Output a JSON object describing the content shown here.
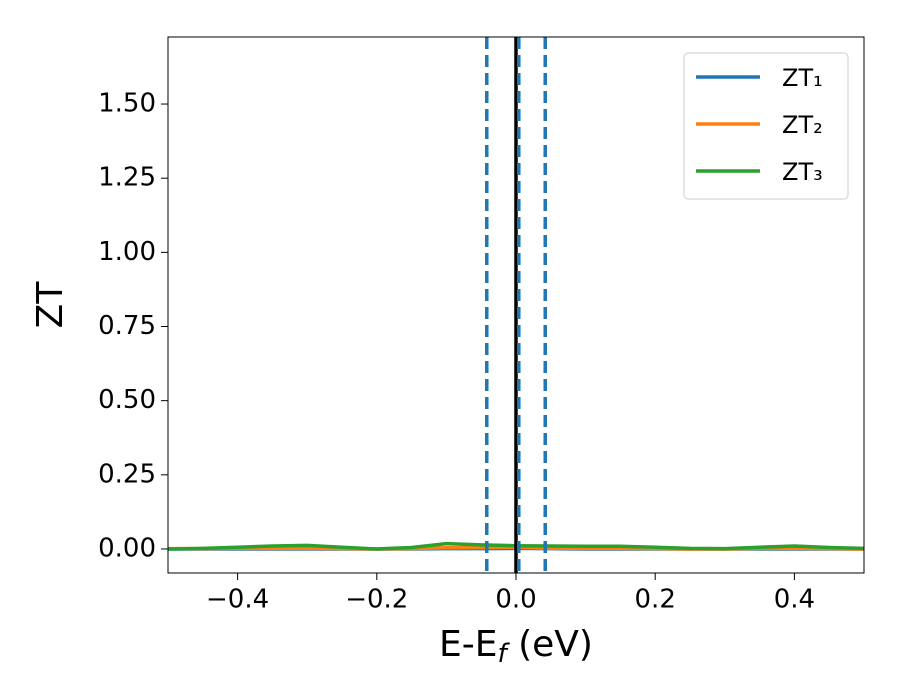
{
  "chart_data": {
    "type": "line",
    "y_label": "ZT",
    "x_label": [
      "E-E",
      "f",
      " (eV)"
    ],
    "x": [
      -0.5,
      -0.45,
      -0.4,
      -0.35,
      -0.3,
      -0.25,
      -0.2,
      -0.15,
      -0.1,
      -0.05,
      0,
      0.05,
      0.1,
      0.15,
      0.2,
      0.25,
      0.3,
      0.35,
      0.4,
      0.45,
      0.5
    ],
    "series": [
      {
        "name": "ZT₁",
        "color": "#1f77b4",
        "values": [
          0,
          0,
          0,
          0,
          0,
          0,
          0,
          0,
          0.001,
          0.001,
          0.002,
          0.001,
          0,
          0,
          0,
          0,
          0,
          0,
          0,
          0,
          0
        ]
      },
      {
        "name": "ZT₂",
        "color": "#ff7f0e",
        "values": [
          0.001,
          0.001,
          0.002,
          0.002,
          0.002,
          0.001,
          0,
          0.001,
          0.004,
          0.005,
          0.006,
          0.003,
          0.002,
          0.002,
          0.001,
          0,
          0,
          0.002,
          0.002,
          0.001,
          0
        ]
      },
      {
        "name": "ZT₃",
        "color": "#2ca02c",
        "values": [
          0,
          0.002,
          0.006,
          0.01,
          0.012,
          0.006,
          0,
          0.005,
          0.018,
          0.014,
          0.011,
          0.01,
          0.009,
          0.009,
          0.006,
          0.002,
          0.001,
          0.006,
          0.01,
          0.005,
          0.002
        ]
      }
    ],
    "vlines": [
      {
        "value": -0.042,
        "color": "#1f77b4",
        "style": "dashed"
      },
      {
        "value": 0.042,
        "color": "#1f77b4",
        "style": "dashed"
      },
      {
        "value": 0,
        "color": "#000000",
        "style": "solid"
      },
      {
        "value": 0.004,
        "color": "#1f77b4",
        "style": "dashed"
      }
    ],
    "xlim": [
      -0.5,
      0.5
    ],
    "ylim": [
      -0.081,
      1.726
    ],
    "xticks": [
      {
        "value": -0.4,
        "label": "−0.4"
      },
      {
        "value": -0.2,
        "label": "−0.2"
      },
      {
        "value": 0,
        "label": "0.0"
      },
      {
        "value": 0.2,
        "label": "0.2"
      },
      {
        "value": 0.4,
        "label": "0.4"
      }
    ],
    "yticks": [
      {
        "value": 0,
        "label": "0.00"
      },
      {
        "value": 0.25,
        "label": "0.25"
      },
      {
        "value": 0.5,
        "label": "0.50"
      },
      {
        "value": 0.75,
        "label": "0.75"
      },
      {
        "value": 1,
        "label": "1.00"
      },
      {
        "value": 1.25,
        "label": "1.25"
      },
      {
        "value": 1.5,
        "label": "1.50"
      }
    ],
    "legend": "upper right",
    "grid": false
  }
}
